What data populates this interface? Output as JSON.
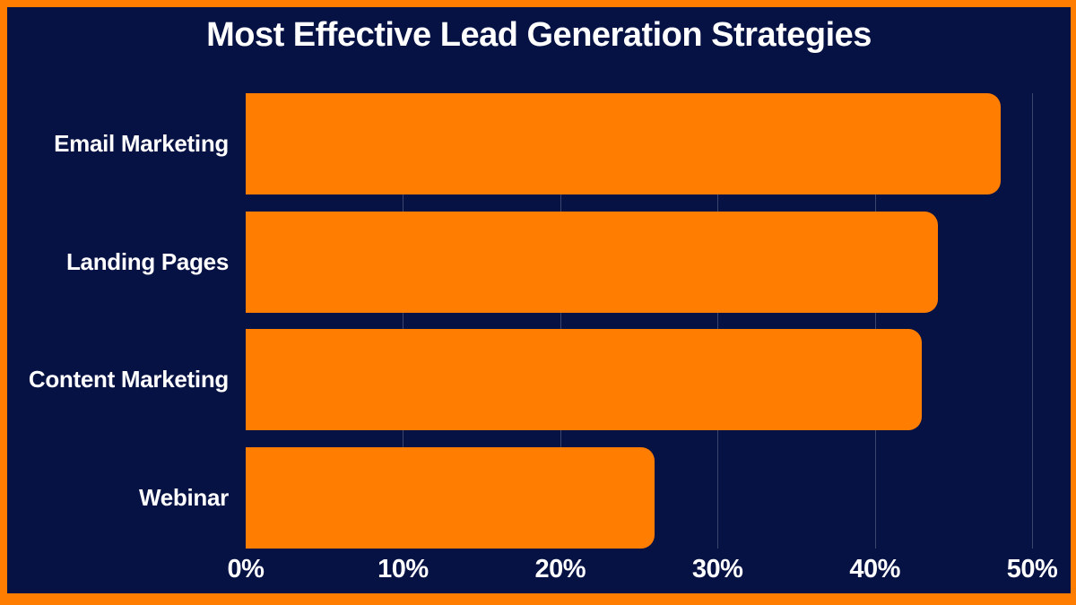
{
  "colors": {
    "background": "#061144",
    "border": "#FF7D00",
    "bar": "#FF7D00",
    "text": "#FFFFFF",
    "gridline": "rgba(255,255,255,0.22)"
  },
  "chart_data": {
    "type": "bar",
    "orientation": "horizontal",
    "title": "Most Effective Lead Generation Strategies",
    "categories": [
      "Email Marketing",
      "Landing Pages",
      "Content Marketing",
      "Webinar"
    ],
    "values": [
      48,
      44,
      43,
      26
    ],
    "unit": "%",
    "xlabel": "",
    "ylabel": "",
    "xlim": [
      0,
      50
    ],
    "x_ticks": [
      "0%",
      "10%",
      "20%",
      "30%",
      "40%",
      "50%"
    ],
    "x_tick_values": [
      0,
      10,
      20,
      30,
      40,
      50
    ],
    "grid": "vertical-only",
    "legend": false
  }
}
